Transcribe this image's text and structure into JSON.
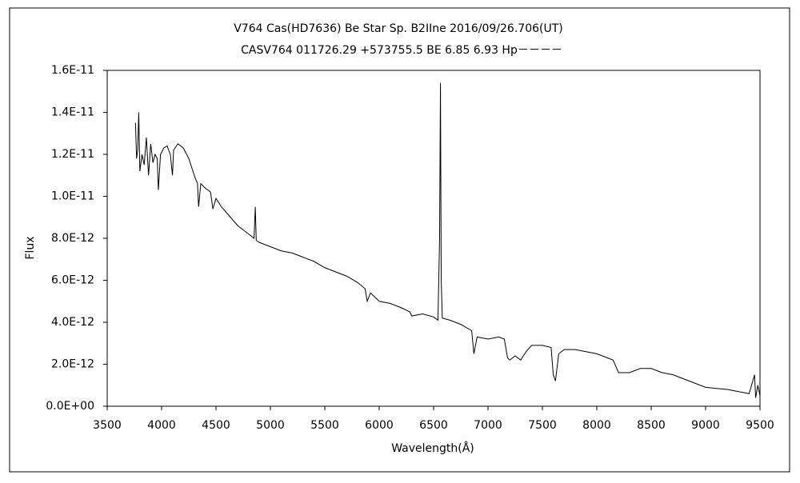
{
  "chart_data": {
    "type": "line",
    "title": "V764 Cas(HD7636)    Be Star    Sp. B2IIne    2016/09/26.706(UT)",
    "subtitle": "CASV764 011726.29 +573755.5 BE 6.85 6.93 Hp－－－－",
    "xlabel": "Wavelength(Å)",
    "ylabel": "Flux",
    "xlim": [
      3500,
      9500
    ],
    "xticks": [
      3500,
      4000,
      4500,
      5000,
      5500,
      6000,
      6500,
      7000,
      7500,
      8000,
      8500,
      9000,
      9500
    ],
    "ylim": [
      0,
      1.6e-11
    ],
    "yticks": [
      {
        "value": 0,
        "label": "0.0E+00"
      },
      {
        "value": 2e-12,
        "label": "2.0E-12"
      },
      {
        "value": 4e-12,
        "label": "4.0E-12"
      },
      {
        "value": 6e-12,
        "label": "6.0E-12"
      },
      {
        "value": 8e-12,
        "label": "8.0E-12"
      },
      {
        "value": 1e-11,
        "label": "1.0E-11"
      },
      {
        "value": 1.2e-11,
        "label": "1.2E-11"
      },
      {
        "value": 1.4e-11,
        "label": "1.4E-11"
      },
      {
        "value": 1.6e-11,
        "label": "1.6E-11"
      }
    ],
    "grid": false,
    "series": [
      {
        "color": "#000000",
        "x": [
          3760,
          3770,
          3780,
          3790,
          3800,
          3820,
          3840,
          3860,
          3880,
          3900,
          3920,
          3940,
          3960,
          3970,
          3990,
          4020,
          4050,
          4080,
          4100,
          4110,
          4150,
          4200,
          4250,
          4300,
          4330,
          4340,
          4360,
          4400,
          4450,
          4471,
          4500,
          4550,
          4600,
          4650,
          4700,
          4750,
          4800,
          4850,
          4861,
          4870,
          4900,
          4950,
          5000,
          5100,
          5200,
          5300,
          5400,
          5500,
          5600,
          5700,
          5800,
          5870,
          5890,
          5920,
          6000,
          6100,
          6200,
          6280,
          6300,
          6400,
          6500,
          6540,
          6555,
          6563,
          6570,
          6580,
          6650,
          6750,
          6850,
          6870,
          6900,
          7000,
          7100,
          7150,
          7180,
          7200,
          7250,
          7300,
          7350,
          7400,
          7500,
          7580,
          7600,
          7620,
          7650,
          7700,
          7800,
          7900,
          8000,
          8100,
          8150,
          8200,
          8300,
          8400,
          8500,
          8600,
          8700,
          8800,
          8900,
          9000,
          9100,
          9200,
          9300,
          9400,
          9450,
          9460,
          9480,
          9500
        ],
        "values": [
          1.35e-11,
          1.18e-11,
          1.22e-11,
          1.4e-11,
          1.12e-11,
          1.2e-11,
          1.15e-11,
          1.28e-11,
          1.1e-11,
          1.25e-11,
          1.16e-11,
          1.2e-11,
          1.18e-11,
          1.03e-11,
          1.2e-11,
          1.23e-11,
          1.24e-11,
          1.2e-11,
          1.1e-11,
          1.22e-11,
          1.25e-11,
          1.23e-11,
          1.18e-11,
          1.1e-11,
          1.06e-11,
          9.5e-12,
          1.06e-11,
          1.04e-11,
          1.02e-11,
          9.4e-12,
          9.9e-12,
          9.5e-12,
          9.2e-12,
          8.9e-12,
          8.6e-12,
          8.4e-12,
          8.2e-12,
          8e-12,
          9.5e-12,
          7.9e-12,
          7.8e-12,
          7.7e-12,
          7.6e-12,
          7.4e-12,
          7.3e-12,
          7.1e-12,
          6.9e-12,
          6.6e-12,
          6.4e-12,
          6.2e-12,
          5.9e-12,
          5.6e-12,
          5e-12,
          5.4e-12,
          5e-12,
          4.9e-12,
          4.7e-12,
          4.5e-12,
          4.3e-12,
          4.4e-12,
          4.25e-12,
          4.1e-12,
          8e-12,
          1.54e-11,
          6e-12,
          4.2e-12,
          4.1e-12,
          3.9e-12,
          3.6e-12,
          2.5e-12,
          3.3e-12,
          3.2e-12,
          3.3e-12,
          3.2e-12,
          2.3e-12,
          2.2e-12,
          2.4e-12,
          2.2e-12,
          2.6e-12,
          2.9e-12,
          2.9e-12,
          2.8e-12,
          1.5e-12,
          1.2e-12,
          2.5e-12,
          2.7e-12,
          2.7e-12,
          2.6e-12,
          2.5e-12,
          2.3e-12,
          2.2e-12,
          1.6e-12,
          1.6e-12,
          1.8e-12,
          1.8e-12,
          1.6e-12,
          1.5e-12,
          1.3e-12,
          1.1e-12,
          9e-13,
          8.5e-13,
          8e-13,
          7e-13,
          6e-13,
          1.5e-12,
          4e-13,
          1e-12,
          5e-13
        ]
      }
    ]
  }
}
